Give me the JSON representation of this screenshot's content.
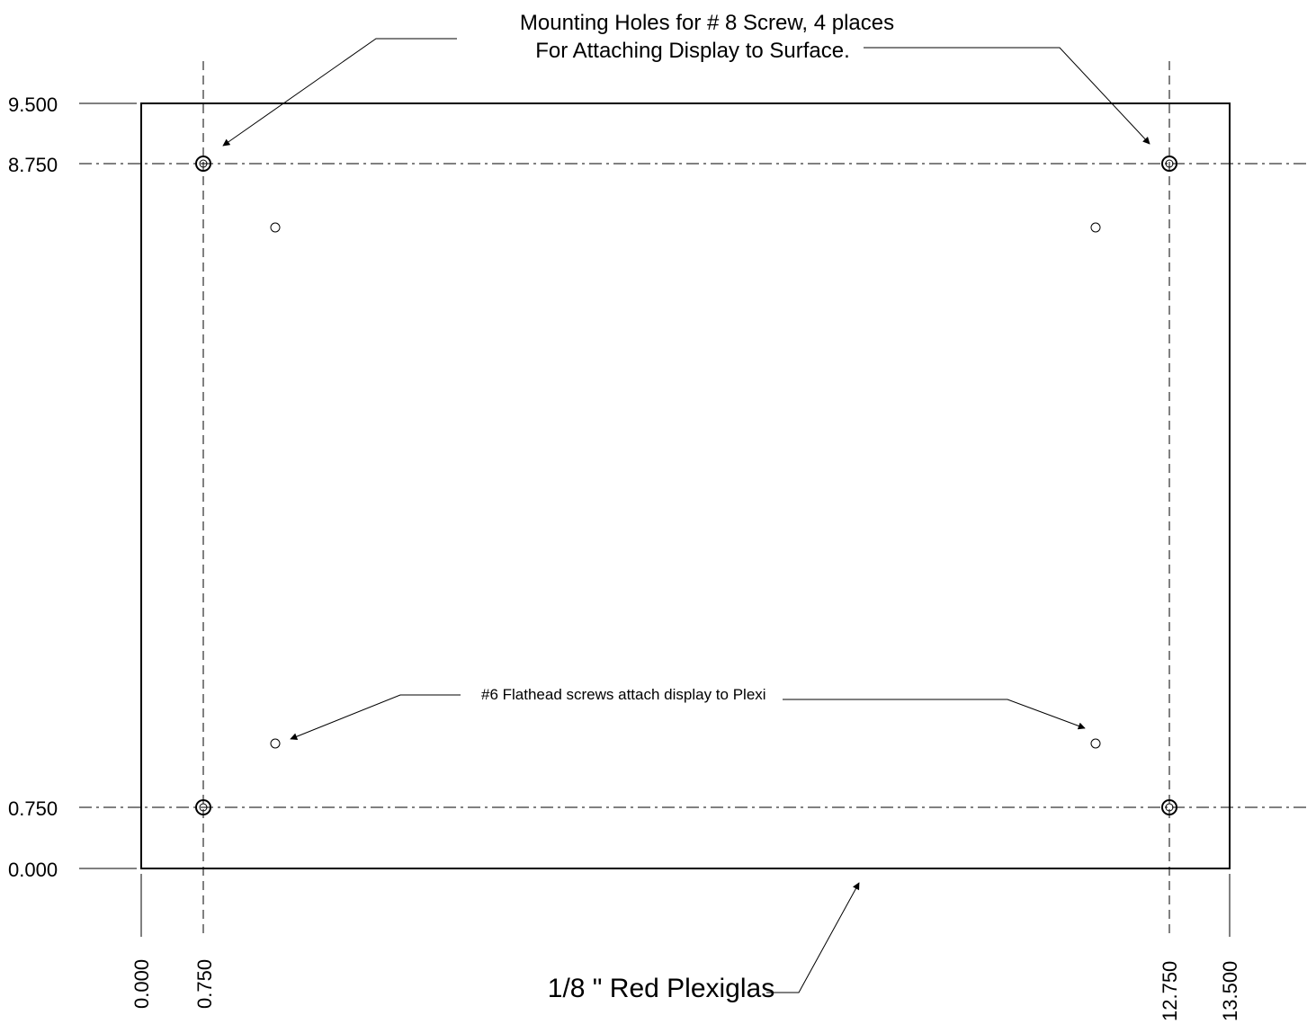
{
  "notes": {
    "mounting_line1": "Mounting Holes for # 8 Screw,  4 places",
    "mounting_line2": "For Attaching Display to Surface.",
    "flathead": "#6 Flathead screws attach display to Plexi",
    "material": "1/8 \" Red Plexiglas"
  },
  "dimensions": {
    "y_labels": [
      "9.500",
      "8.750",
      "0.750",
      "0.000"
    ],
    "x_labels": [
      "0.000",
      "0.750",
      "12.750",
      "13.500"
    ]
  }
}
